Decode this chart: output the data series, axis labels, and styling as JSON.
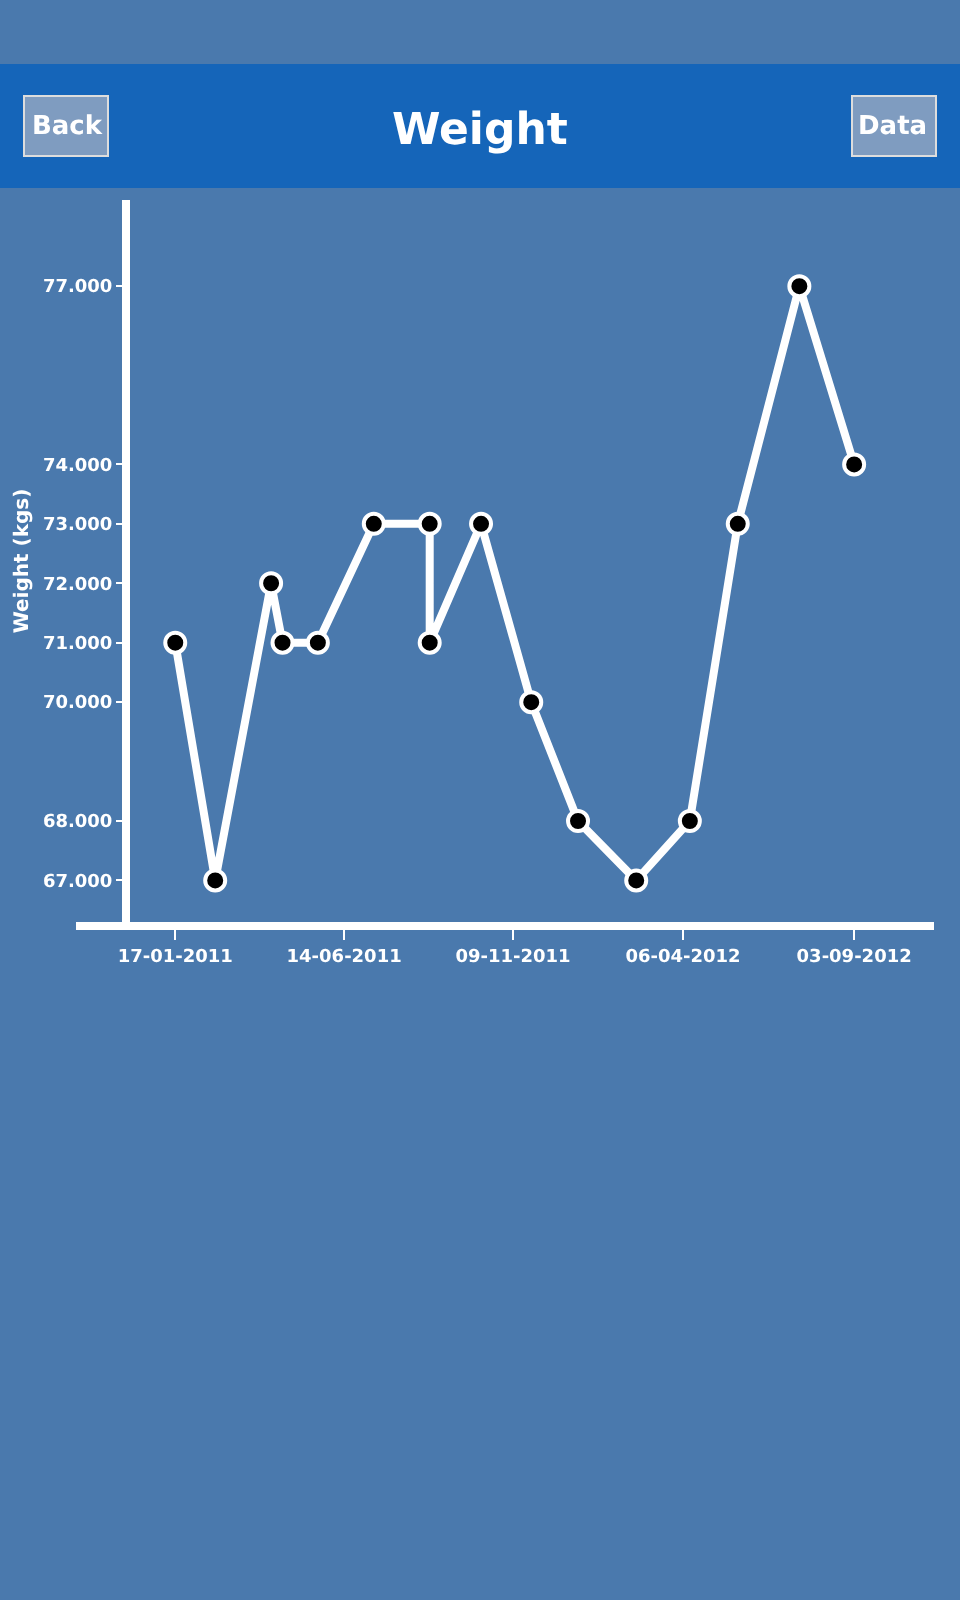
{
  "chart_data": {
    "type": "line",
    "title": "Weight",
    "ylabel": "Weight (kgs)",
    "annotations": [
      "Back",
      "Data"
    ],
    "x": [
      "2011-01-17",
      "2011-02-21",
      "2011-04-11",
      "2011-04-21",
      "2011-05-22",
      "2011-07-10",
      "2011-08-28",
      "2011-08-28",
      "2011-10-12",
      "2011-11-25",
      "2012-01-05",
      "2012-02-25",
      "2012-04-12",
      "2012-05-24",
      "2012-07-17",
      "2012-09-03"
    ],
    "series": [
      {
        "color": "#ffffff",
        "values": [
          71,
          67,
          72,
          71,
          71,
          73,
          73,
          71,
          73,
          70,
          68,
          67,
          68,
          73,
          77,
          74
        ]
      }
    ],
    "xlim": [
      "2010-10-22",
      "2012-11-12"
    ],
    "xticks": [
      {
        "value": "2011-01-17",
        "label": "17-01-2011"
      },
      {
        "value": "2011-06-14",
        "label": "14-06-2011"
      },
      {
        "value": "2011-11-09",
        "label": "09-11-2011"
      },
      {
        "value": "2012-04-06",
        "label": "06-04-2012"
      },
      {
        "value": "2012-09-03",
        "label": "03-09-2012"
      }
    ],
    "ylim": [
      66.3,
      78.45
    ],
    "yticks": [
      {
        "value": 67,
        "label": "67.000"
      },
      {
        "value": 68,
        "label": "68.000"
      },
      {
        "value": 70,
        "label": "70.000"
      },
      {
        "value": 71,
        "label": "71.000"
      },
      {
        "value": 72,
        "label": "72.000"
      },
      {
        "value": 73,
        "label": "73.000"
      },
      {
        "value": 74,
        "label": "74.000"
      },
      {
        "value": 77,
        "label": "77.000"
      }
    ],
    "grid": false,
    "marker": "circle",
    "line_style": "solid"
  }
}
